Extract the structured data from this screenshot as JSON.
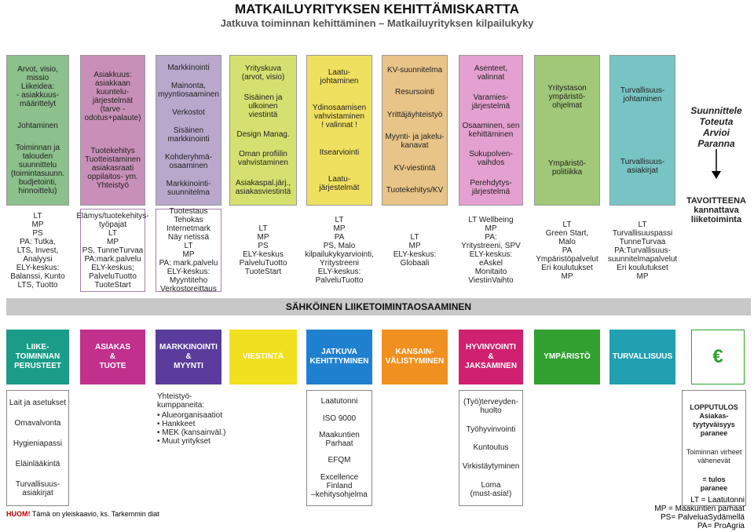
{
  "header": {
    "title": "MATKAILUYRITYKSEN KEHITTÄMISKARTTA",
    "subtitle": "Jatkuva toiminnan kehittäminen – Matkailuyrityksen kilpailukyky"
  },
  "columns": [
    {
      "top": [
        "Arvot, visio,\nmissio\nLiikeidea:\n- asiakkuus-\nmäärittelyt",
        "Johtaminen",
        "Toiminnan ja\ntalouden\nsuunnittelu\n(toimintasuunn.\nbudjetointi,\nhinnoittelu)"
      ],
      "middle": "LT\nMP\nPS\nPA: Tutka,\nLTS, Invest, Analyysi\nELY-keskus:\nBalanssi, Kunto\nLTS, Tuotto",
      "header": "LIIKE-\nTOIMINNAN\nPERUSTEET",
      "bottom": [
        "Lait ja asetukset",
        "Omavalvonta",
        "Hygieniapassi",
        "Eläinlääkintä",
        "Turvallisuus-\nasiakirjat"
      ]
    },
    {
      "top": [
        "Asiakkuus:\nasiakkaan\nkuuntelu-\njärjestelmät\n(tarve -\nodotus+palaute)",
        "Tuotekehitys\nTuotteistaminen\nasiakasraati\noppilaitos- ym.\nYhteistyö"
      ],
      "middle": "Elämys/tuotekehitys-\ntyöpajat\nLT\nMP\nPS, TunneTurvaa\nPA:mark.palvelu\nELY-keskus;\nPalveluTuotto\nTuoteStart",
      "header": "ASIAKAS\n&\nTUOTE"
    },
    {
      "top": [
        "Markkinointi",
        "Mainonta,\nmyyntiosaaminen",
        "Verkostot",
        "Sisäinen\nmarkkinointi",
        "Kohderyhmä-\nosaaminen",
        "Markkinointi-\nsuunnitelma"
      ],
      "middle": "Tuotestaus\nTehokas Internetmark\nNäy netissä\nLT\nMP\nPA: mark.palvelu\nELY-keskus:\nMyyntiteho\nVerkostoreittaus",
      "header": "MARKKINOINTI\n&\nMYYNTI",
      "bottom": [
        "Yhteistyö-\nkumppaneita:",
        "• Alueorganisaatiot\n• Hankkeet\n• MEK (kansainväl.)\n• Muut yritykset"
      ]
    },
    {
      "top": [
        "Yrityskuva\n(arvot, visio)",
        "Sisäinen ja\nulkoinen\nviestintä",
        "Design Manag.",
        "Oman profiilin\nvahvistaminen",
        "Asiakaspal.järj.,\nasiakasviestintä"
      ],
      "middle": "LT\nMP\nPS\nELY-keskus\nPalveluTuotto\nTuoteStart",
      "header": "VIESTINTÄ"
    },
    {
      "top": [
        "Laatu-\njohtaminen",
        "Ydinosaamisen\nvahvistaminen\n! valinnat !",
        "Itsearviointi",
        "Laatu-\njärjestelmät"
      ],
      "middle": "LT\nMP\nPA\nPS, Malo\nkilpailukykyarviointi,\nYritystreeni\nELY-keskus:\nPalveluTuotto",
      "header": "JATKUVA\nKEHITTYMINEN",
      "bottom": [
        "Laatutonni",
        "ISO 9000",
        "Maakuntien\nParhaat",
        "EFQM",
        "Excellence Finland\n–kehitysohjelma"
      ]
    },
    {
      "top": [
        "KV-suunnitelma",
        "Resursointi",
        "Yrittäjäyhteistyö",
        "Myynti- ja jakelu-\nkanavat",
        "KV-viestintä",
        "Tuotekehitys/KV"
      ],
      "middle": "LT\nMP\nELY-keskus:\nGlobaali",
      "header": "KANSAIN-\nVÄLISTYMINEN"
    },
    {
      "top": [
        "Asenteet,\nvalinnat",
        "Varamies-\njärjestelmä",
        "Osaaminen, sen\nkehittäminen",
        "Sukupolven-\nvaihdos",
        "Perehdytys-\njärjestelmä"
      ],
      "middle": "LT Wellbeing\nMP\nPA:\nYritystreeni, SPV\nELY-keskus:\neAskel\nMonitaito\nViestinVaihto",
      "header": "HYVINVOINTI\n&\nJAKSAMINEN",
      "bottom": [
        "(Työ)terveyden-\nhuolto",
        "Työhyvinvointi",
        "Kuntoutus",
        "Virkistäytyminen",
        "Loma\n(must-asia!)"
      ]
    },
    {
      "top": [
        "Yritystason\nympäristö-\nohjelmat",
        "Ympäristö-\npolitiikka"
      ],
      "middle": "LT\nGreen Start,\nMalo\nPA\nYmpäristöpalvelut\nEri koulutukset\nMP",
      "header": "YMPÄRISTÖ"
    },
    {
      "top": [
        "Turvallisuus-\njohtaminen",
        "Turvallisuus-\nasiakirjat"
      ],
      "middle": "LT\nTurvallisuuspassi\nTunneTurvaa\nPA:Turvallisuus-\nsuunnitelmapalvelut\nEri koulutukset\nMP",
      "header": "TURVALLISUUS"
    },
    {
      "top": [
        "Suunnittele\nToteuta\nArvioi\nParanna"
      ],
      "middle": "TAVOITTEENA\nkannattava\nliiketoiminta",
      "header": "€",
      "bottom": [
        "LOPPUTULOS\nAsiakas-\ntyytyväisyys\nparanee",
        "Toiminnan virheet\nvähenevät",
        "= tulos\nparanee"
      ]
    }
  ],
  "band": "SÄHKÖINEN LIIKETOIMINTAOSAAMINEN",
  "footer": {
    "note_label": "HUOM!",
    "note": "Tämä on yleiskaavio, ks. Tarkemmin diat",
    "legend": [
      "LT = Laatutonni",
      "MP = Maakuntien parhaat",
      "PS= PalveluaSydämellä",
      "PA= ProAgria"
    ]
  }
}
